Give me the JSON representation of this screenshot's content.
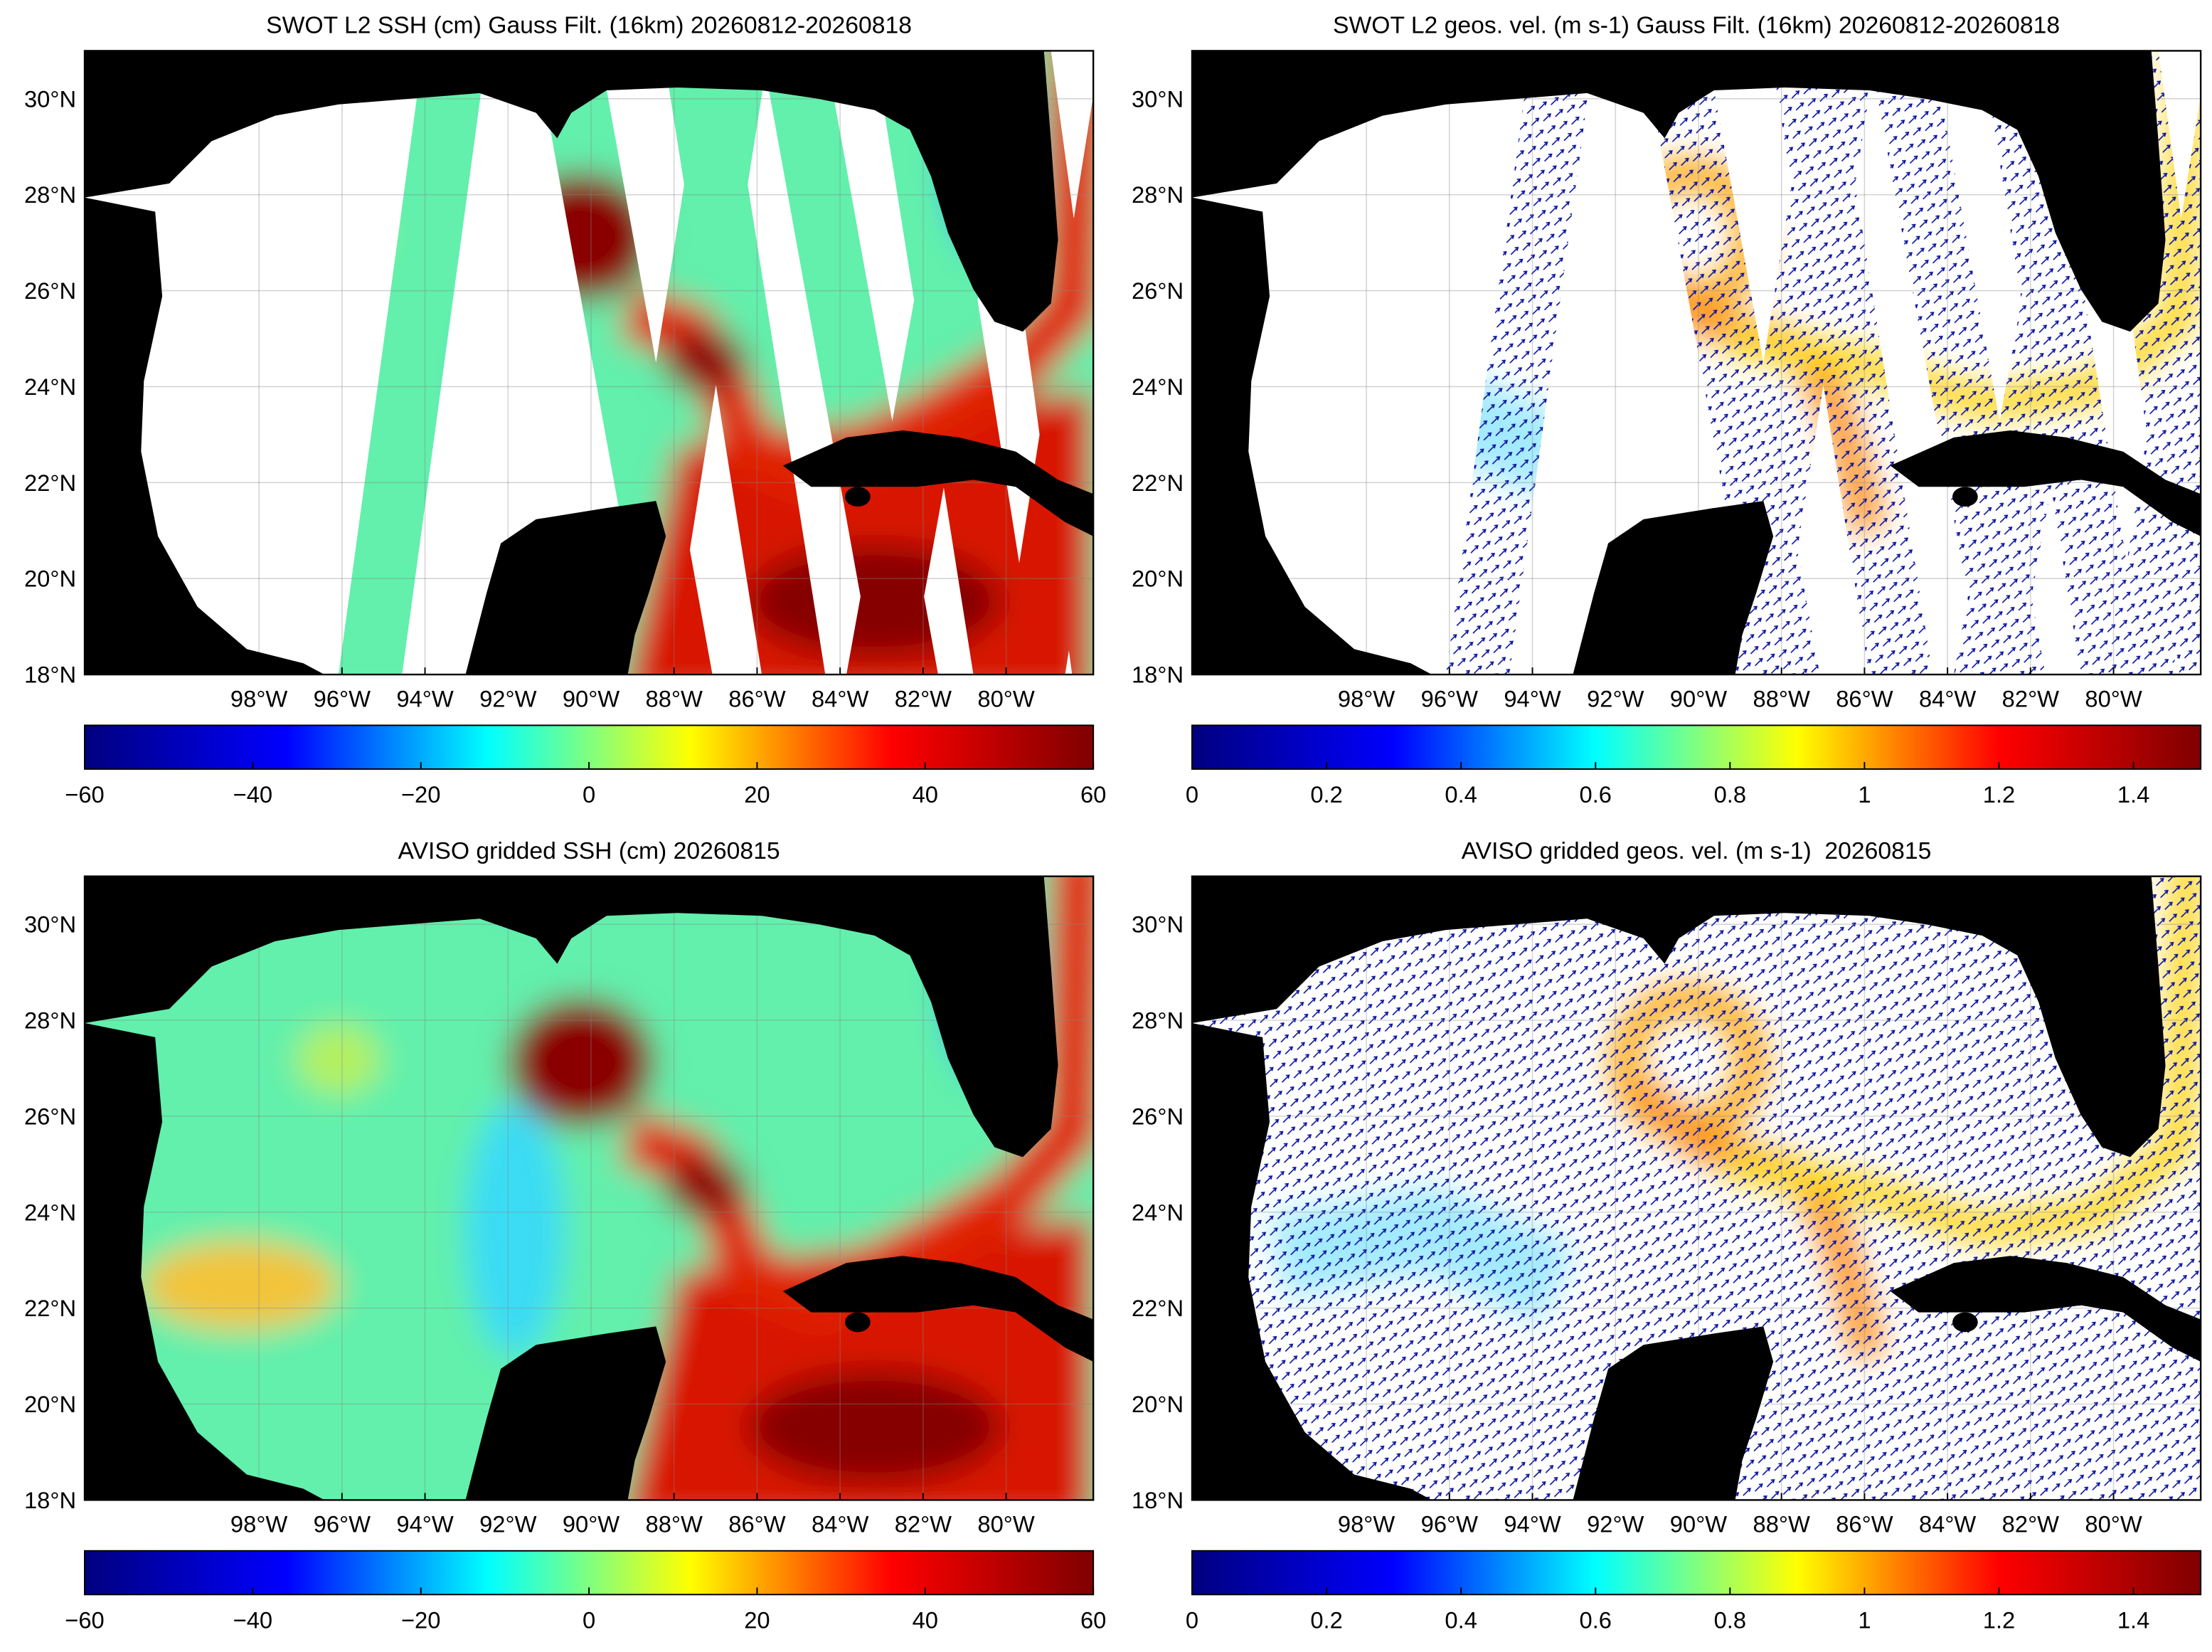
{
  "chart_data": [
    {
      "type": "map",
      "title": "SWOT L2 SSH (cm) Gauss Filt. (16km) 20260812-20260818",
      "xlim": [
        -102.2,
        -77.9
      ],
      "ylim": [
        18,
        31
      ],
      "xticks": [
        {
          "value": -98,
          "label": "98°W"
        },
        {
          "value": -96,
          "label": "96°W"
        },
        {
          "value": -94,
          "label": "94°W"
        },
        {
          "value": -92,
          "label": "92°W"
        },
        {
          "value": -90,
          "label": "90°W"
        },
        {
          "value": -88,
          "label": "88°W"
        },
        {
          "value": -86,
          "label": "86°W"
        },
        {
          "value": -84,
          "label": "84°W"
        },
        {
          "value": -82,
          "label": "82°W"
        },
        {
          "value": -80,
          "label": "80°W"
        }
      ],
      "yticks": [
        {
          "value": 18,
          "label": "18°N"
        },
        {
          "value": 20,
          "label": "20°N"
        },
        {
          "value": 22,
          "label": "22°N"
        },
        {
          "value": 24,
          "label": "24°N"
        },
        {
          "value": 26,
          "label": "26°N"
        },
        {
          "value": 28,
          "label": "28°N"
        },
        {
          "value": 30,
          "label": "30°N"
        }
      ],
      "grid": true,
      "land_color": "#000000",
      "clim": [
        -60,
        60
      ],
      "cticks": [
        {
          "value": -60,
          "label": "−60"
        },
        {
          "value": -40,
          "label": "−40"
        },
        {
          "value": -20,
          "label": "−20"
        },
        0,
        20,
        40,
        60
      ],
      "colormap": [
        "#00007f",
        "#0000ff",
        "#00ffff",
        "#ffff00",
        "#ff0000",
        "#7f0000"
      ]
    },
    {
      "type": "quiver",
      "title": "SWOT L2 geos. vel. (m s-1) Gauss Filt. (16km) 20260812-20260818",
      "xlim": [
        -102.2,
        -77.9
      ],
      "ylim": [
        18,
        31
      ],
      "xticks": [
        {
          "value": -98,
          "label": "98°W"
        },
        {
          "value": -96,
          "label": "96°W"
        },
        {
          "value": -94,
          "label": "94°W"
        },
        {
          "value": -92,
          "label": "92°W"
        },
        {
          "value": -90,
          "label": "90°W"
        },
        {
          "value": -88,
          "label": "88°W"
        },
        {
          "value": -86,
          "label": "86°W"
        },
        {
          "value": -84,
          "label": "84°W"
        },
        {
          "value": -82,
          "label": "82°W"
        },
        {
          "value": -80,
          "label": "80°W"
        }
      ],
      "yticks": [
        {
          "value": 18,
          "label": "18°N"
        },
        {
          "value": 20,
          "label": "20°N"
        },
        {
          "value": 22,
          "label": "22°N"
        },
        {
          "value": 24,
          "label": "24°N"
        },
        {
          "value": 26,
          "label": "26°N"
        },
        {
          "value": 28,
          "label": "28°N"
        },
        {
          "value": 30,
          "label": "30°N"
        }
      ],
      "grid": true,
      "land_color": "#000000",
      "clim": [
        0,
        1.5
      ],
      "cticks": [
        0,
        0.2,
        0.4,
        0.6,
        0.8,
        1,
        1.2,
        1.4
      ],
      "colormap": [
        "#00007f",
        "#0000ff",
        "#00ffff",
        "#ffff00",
        "#ff0000",
        "#7f0000"
      ]
    },
    {
      "type": "map",
      "title": "AVISO gridded SSH (cm) 20260815",
      "xlim": [
        -102.2,
        -77.9
      ],
      "ylim": [
        18,
        31
      ],
      "xticks": [
        {
          "value": -98,
          "label": "98°W"
        },
        {
          "value": -96,
          "label": "96°W"
        },
        {
          "value": -94,
          "label": "94°W"
        },
        {
          "value": -92,
          "label": "92°W"
        },
        {
          "value": -90,
          "label": "90°W"
        },
        {
          "value": -88,
          "label": "88°W"
        },
        {
          "value": -86,
          "label": "86°W"
        },
        {
          "value": -84,
          "label": "84°W"
        },
        {
          "value": -82,
          "label": "82°W"
        },
        {
          "value": -80,
          "label": "80°W"
        }
      ],
      "yticks": [
        {
          "value": 18,
          "label": "18°N"
        },
        {
          "value": 20,
          "label": "20°N"
        },
        {
          "value": 22,
          "label": "22°N"
        },
        {
          "value": 24,
          "label": "24°N"
        },
        {
          "value": 26,
          "label": "26°N"
        },
        {
          "value": 28,
          "label": "28°N"
        },
        {
          "value": 30,
          "label": "30°N"
        }
      ],
      "grid": true,
      "land_color": "#000000",
      "clim": [
        -60,
        60
      ],
      "cticks": [
        {
          "value": -60,
          "label": "−60"
        },
        {
          "value": -40,
          "label": "−40"
        },
        {
          "value": -20,
          "label": "−20"
        },
        0,
        20,
        40,
        60
      ],
      "colormap": [
        "#00007f",
        "#0000ff",
        "#00ffff",
        "#ffff00",
        "#ff0000",
        "#7f0000"
      ]
    },
    {
      "type": "quiver",
      "title": "AVISO gridded geos. vel. (m s-1)  20260815",
      "xlim": [
        -102.2,
        -77.9
      ],
      "ylim": [
        18,
        31
      ],
      "xticks": [
        {
          "value": -98,
          "label": "98°W"
        },
        {
          "value": -96,
          "label": "96°W"
        },
        {
          "value": -94,
          "label": "94°W"
        },
        {
          "value": -92,
          "label": "92°W"
        },
        {
          "value": -90,
          "label": "90°W"
        },
        {
          "value": -88,
          "label": "88°W"
        },
        {
          "value": -86,
          "label": "86°W"
        },
        {
          "value": -84,
          "label": "84°W"
        },
        {
          "value": -82,
          "label": "82°W"
        },
        {
          "value": -80,
          "label": "80°W"
        }
      ],
      "yticks": [
        {
          "value": 18,
          "label": "18°N"
        },
        {
          "value": 20,
          "label": "20°N"
        },
        {
          "value": 22,
          "label": "22°N"
        },
        {
          "value": 24,
          "label": "24°N"
        },
        {
          "value": 26,
          "label": "26°N"
        },
        {
          "value": 28,
          "label": "28°N"
        },
        {
          "value": 30,
          "label": "30°N"
        }
      ],
      "grid": true,
      "land_color": "#000000",
      "clim": [
        0,
        1.5
      ],
      "cticks": [
        0,
        0.2,
        0.4,
        0.6,
        0.8,
        1,
        1.2,
        1.4
      ],
      "colormap": [
        "#00007f",
        "#0000ff",
        "#00ffff",
        "#ffff00",
        "#ff0000",
        "#7f0000"
      ]
    }
  ]
}
